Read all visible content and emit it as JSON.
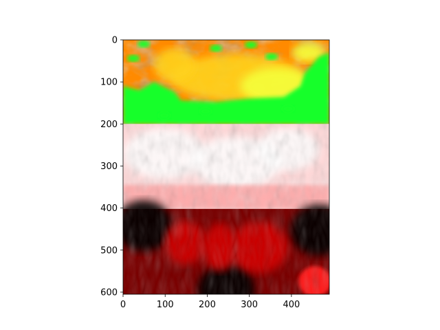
{
  "chart_data": {
    "type": "image",
    "title": "",
    "xlabel": "",
    "ylabel": "",
    "xlim": [
      0,
      490
    ],
    "ylim": [
      605,
      0
    ],
    "y_axis_inverted": true,
    "x_ticks": [
      0,
      100,
      200,
      300,
      400
    ],
    "y_ticks": [
      0,
      100,
      200,
      300,
      400,
      500,
      600
    ],
    "grid": false,
    "legend": "none",
    "panels": [
      {
        "name": "false-color-band",
        "rows": [
          0,
          200
        ],
        "colormap": "red-yellow-green",
        "colors": [
          "#e82410",
          "#ff8a00",
          "#ffd21a",
          "#f5ff3a",
          "#14ff2a"
        ]
      },
      {
        "name": "light-red-band",
        "rows": [
          200,
          402
        ],
        "colormap": "white-red",
        "colors": [
          "#ffffff",
          "#ffd8d8",
          "#ff9a9a",
          "#f05050"
        ]
      },
      {
        "name": "dark-red-band",
        "rows": [
          402,
          605
        ],
        "colormap": "black-red",
        "colors": [
          "#000000",
          "#3a0000",
          "#7a0000",
          "#d80000",
          "#ff1a1a"
        ]
      }
    ]
  }
}
